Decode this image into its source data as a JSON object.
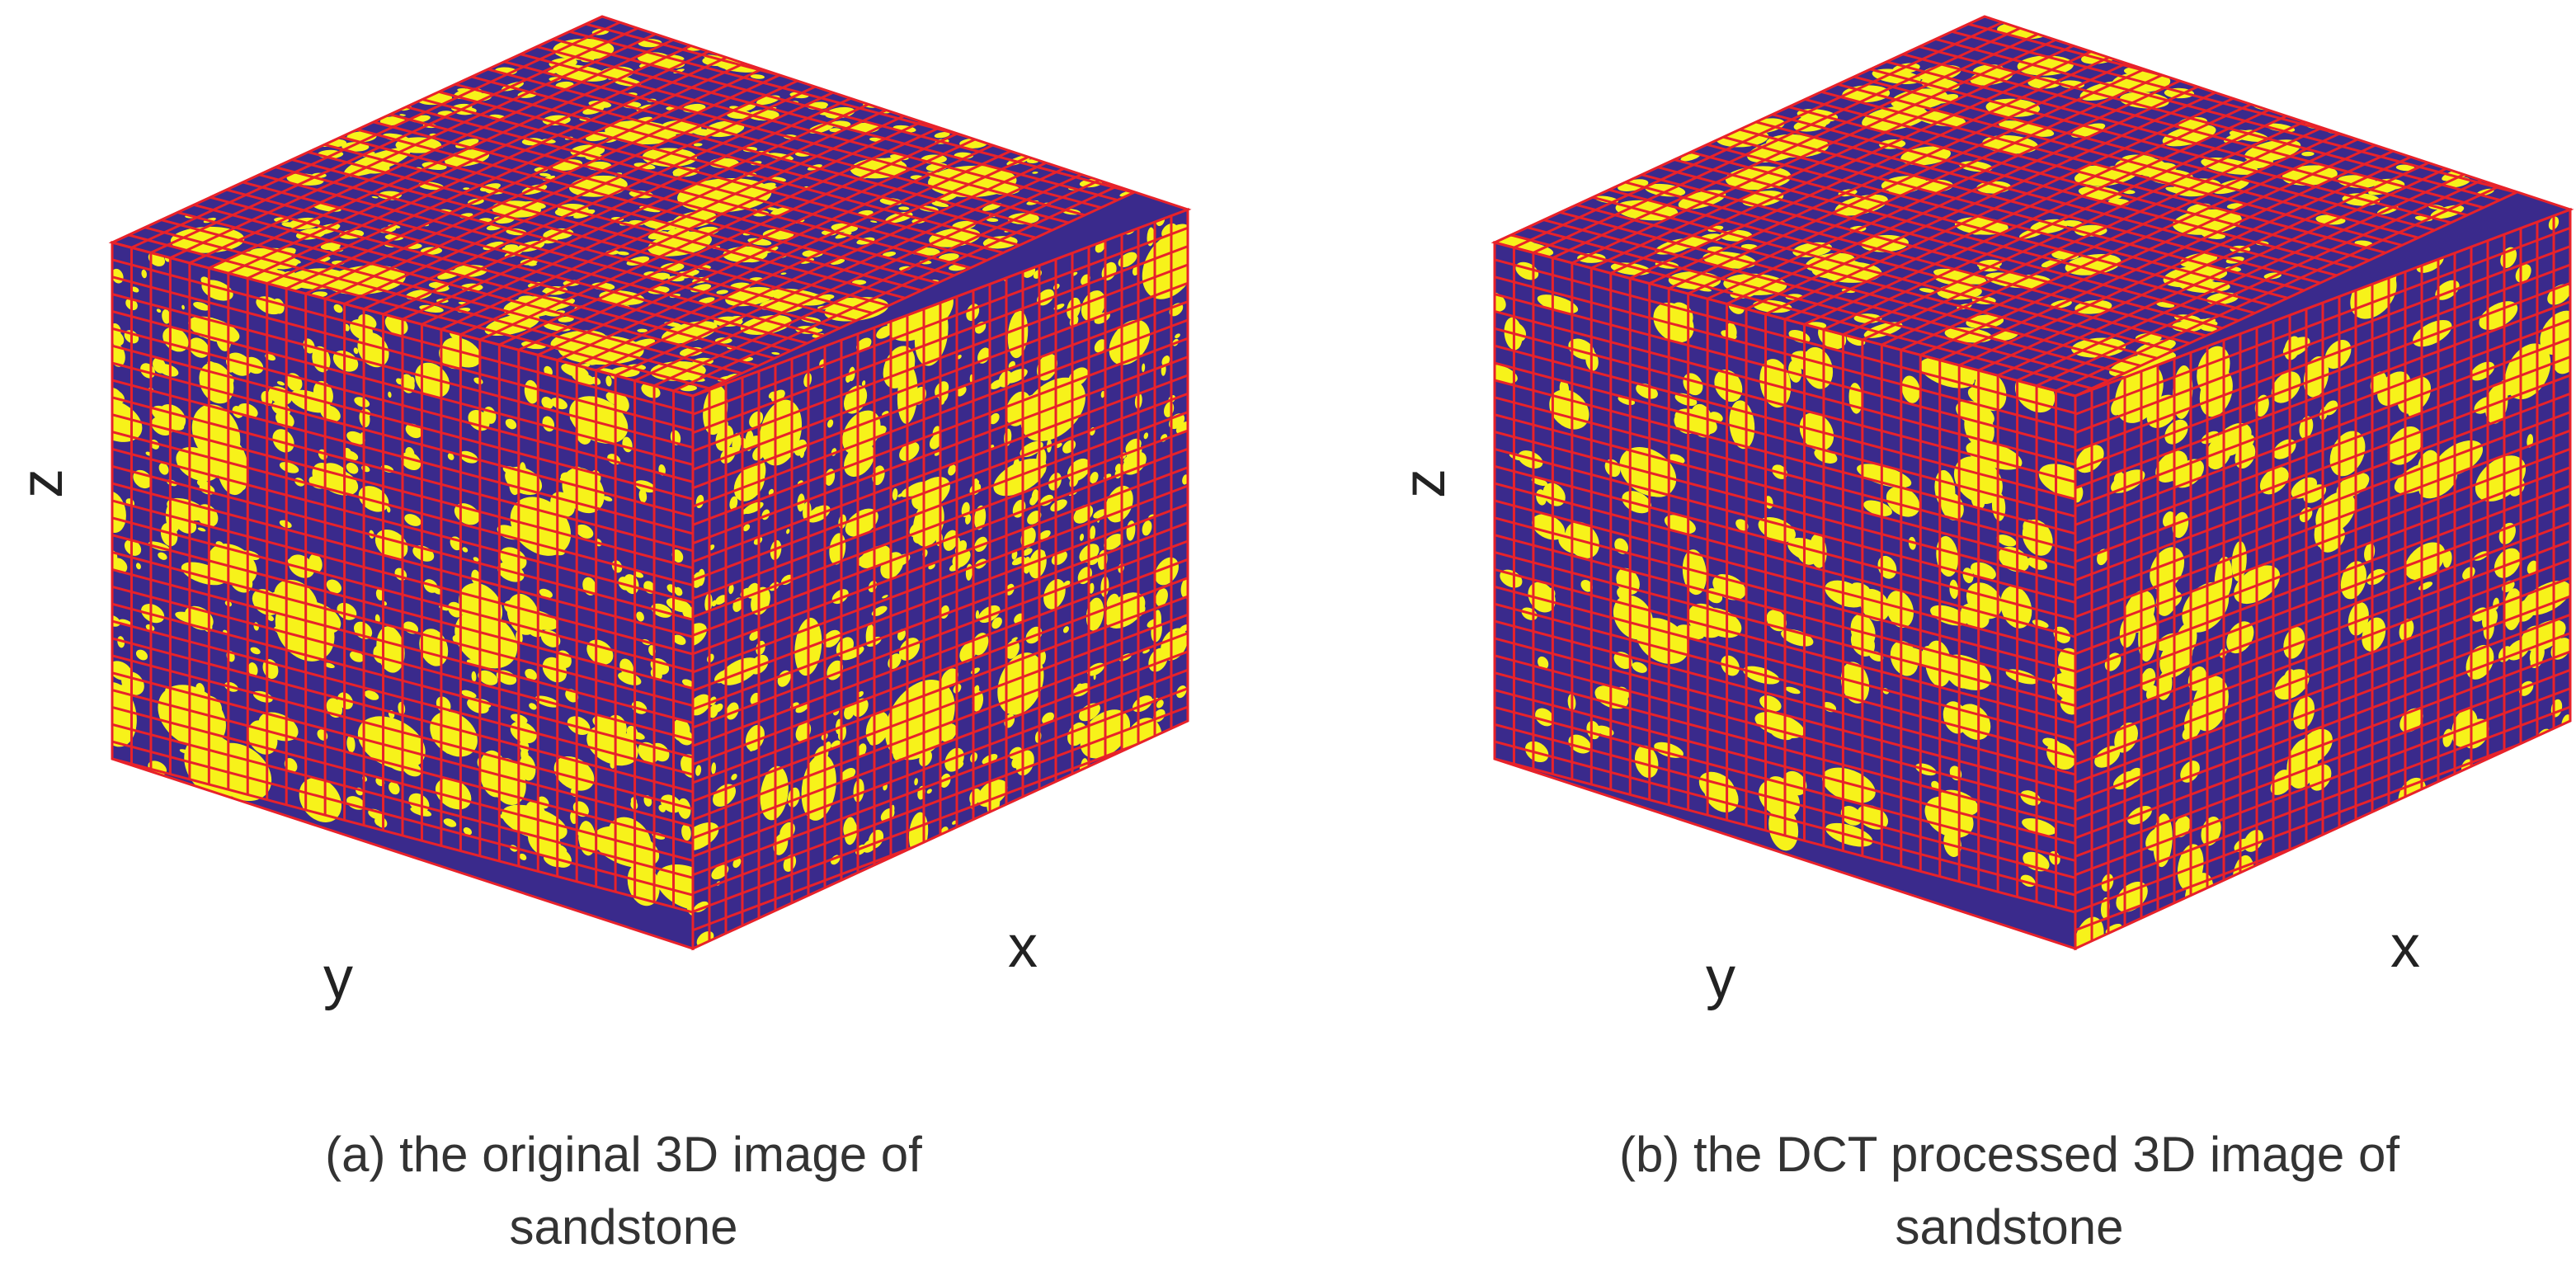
{
  "panels": [
    {
      "axis_labels": {
        "z": "z",
        "y": "y",
        "x": "x"
      },
      "caption": [
        "(a) the original 3D image of",
        "sandstone"
      ]
    },
    {
      "axis_labels": {
        "z": "z",
        "y": "y",
        "x": "x"
      },
      "caption": [
        "(b) the DCT processed 3D image of",
        "sandstone"
      ]
    }
  ]
}
